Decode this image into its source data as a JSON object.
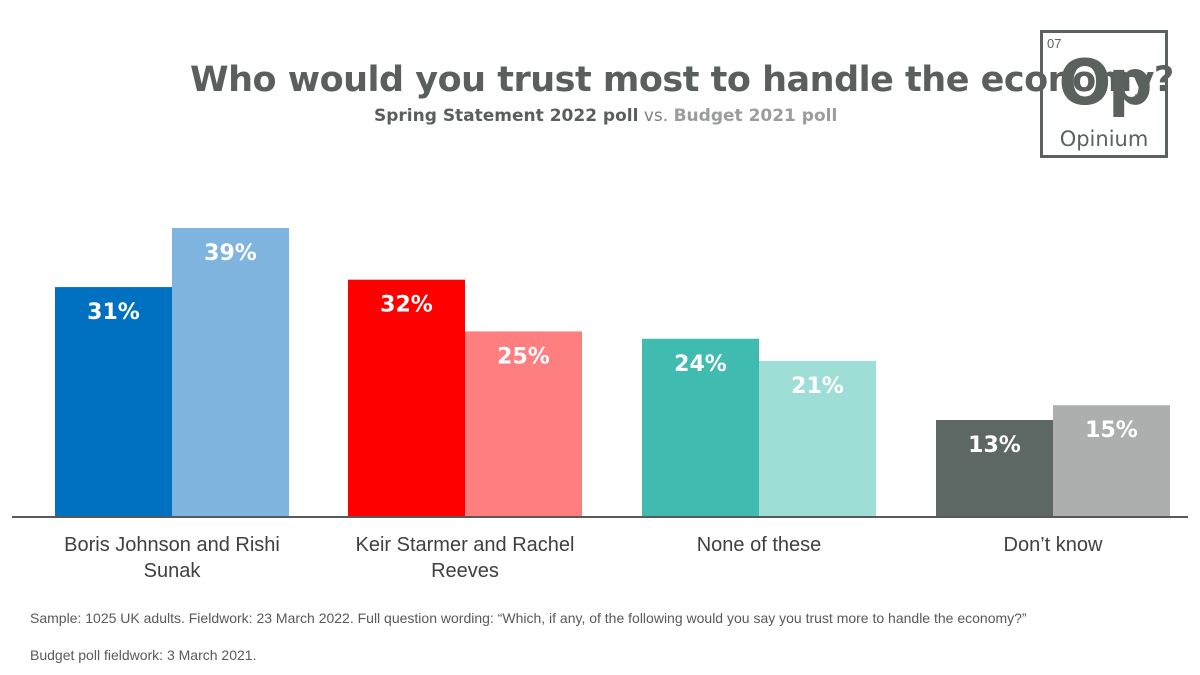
{
  "header": {
    "title": "Who would you trust most to handle the economy?",
    "subtitle_a": "Spring Statement 2022 poll",
    "subtitle_vs": "vs.",
    "subtitle_b": "Budget 2021 poll"
  },
  "logo": {
    "number": "07",
    "symbol": "Op",
    "name": "Opinium"
  },
  "footnotes": [
    "Sample: 1025 UK adults. Fieldwork: 23 March 2022. Full question wording: “Which, if any, of the following would you say you trust more to handle the economy?”",
    "Budget poll fieldwork: 3 March 2021."
  ],
  "chart_data": {
    "type": "bar",
    "title": "Who would you trust most to handle the economy?",
    "categories": [
      [
        "Boris Johnson and Rishi",
        "Sunak"
      ],
      [
        "Keir Starmer and Rachel",
        "Reeves"
      ],
      [
        "None of these"
      ],
      [
        "Don’t know"
      ]
    ],
    "series": [
      {
        "name": "Spring Statement 2022 poll",
        "values": [
          31,
          32,
          24,
          13
        ],
        "labels": [
          "31%",
          "32%",
          "24%",
          "13%"
        ],
        "colors": [
          "#0070c0",
          "#ff0000",
          "#3fbbb0",
          "#5d6763"
        ]
      },
      {
        "name": "Budget 2021 poll",
        "values": [
          39,
          25,
          21,
          15
        ],
        "labels": [
          "39%",
          "25%",
          "21%",
          "15%"
        ],
        "colors": [
          "#7fb4df",
          "#ff7f80",
          "#9fddd7",
          "#adafae"
        ]
      }
    ],
    "ylim": [
      0,
      40
    ],
    "grid": false,
    "legend": "subtitle"
  }
}
